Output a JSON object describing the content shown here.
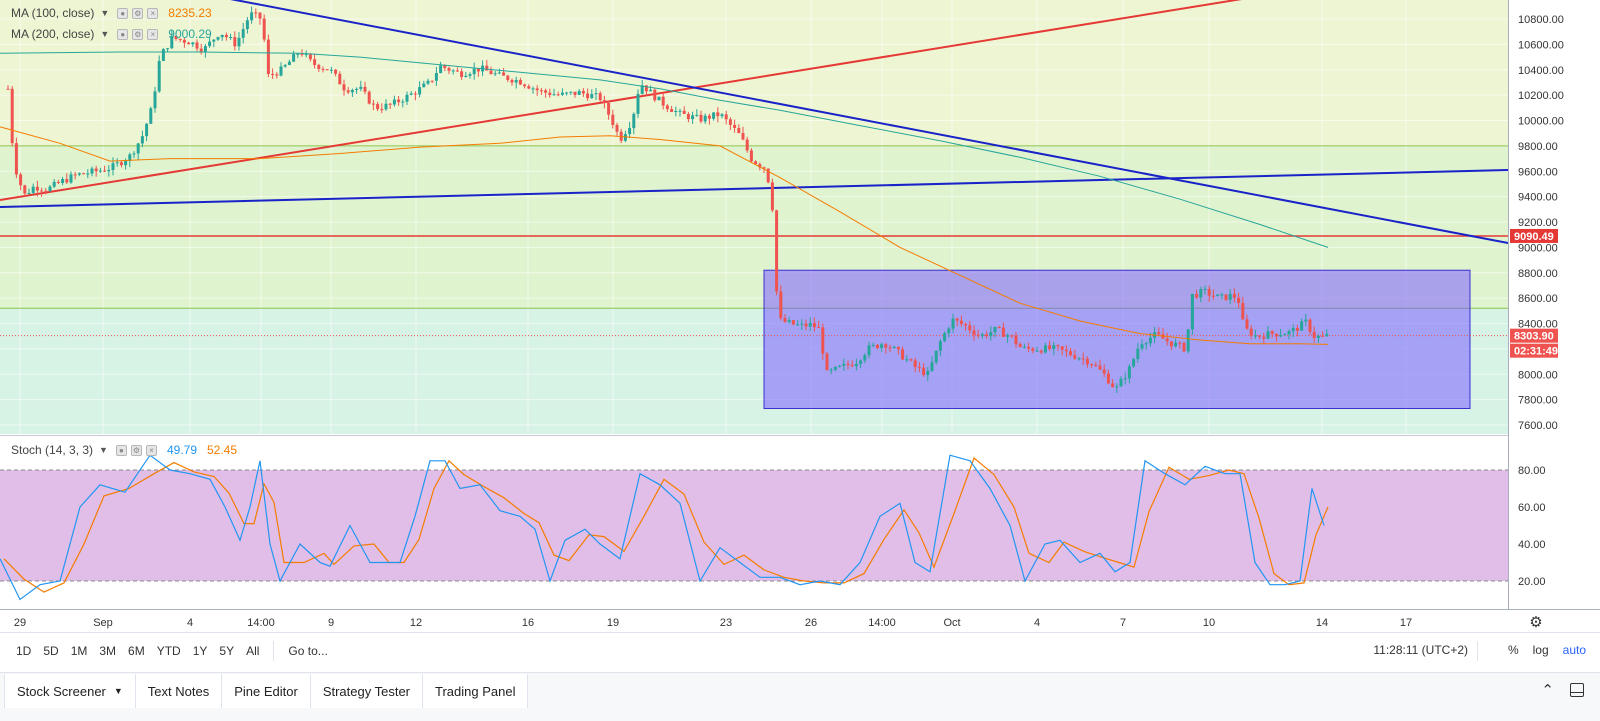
{
  "legends": {
    "ma100": {
      "name": "MA (100, close)",
      "value": "8235.23",
      "color": "#f57c00"
    },
    "ma200": {
      "name": "MA (200, close)",
      "value": "9000.29",
      "color": "#26a69a"
    },
    "stoch": {
      "name": "Stoch (14, 3, 3)",
      "k_value": "49.79",
      "d_value": "52.45",
      "k_color": "#2196f3",
      "d_color": "#f57c00"
    }
  },
  "price_axis": {
    "ticks": [
      "10800.00",
      "10600.00",
      "10400.00",
      "10200.00",
      "10000.00",
      "9800.00",
      "9600.00",
      "9400.00",
      "9200.00",
      "9000.00",
      "8800.00",
      "8600.00",
      "8400.00",
      "8200.00",
      "8000.00",
      "7800.00",
      "7600.00"
    ],
    "labels": {
      "resistance": "9090.49",
      "last_price": "8303.90",
      "countdown": "02:31:49"
    }
  },
  "stoch_axis": {
    "ticks": [
      "80.00",
      "60.00",
      "40.00",
      "20.00"
    ]
  },
  "time_axis": {
    "ticks": [
      "29",
      "Sep",
      "4",
      "14:00",
      "9",
      "12",
      "16",
      "19",
      "23",
      "26",
      "14:00",
      "Oct",
      "4",
      "7",
      "10",
      "14",
      "17"
    ]
  },
  "toolbar": {
    "ranges": [
      "1D",
      "5D",
      "1M",
      "3M",
      "6M",
      "YTD",
      "1Y",
      "5Y",
      "All"
    ],
    "goto": "Go to...",
    "clock": "11:28:11 (UTC+2)",
    "percent": "%",
    "log": "log",
    "auto": "auto"
  },
  "bottom_tabs": [
    "Stock Screener",
    "Text Notes",
    "Pine Editor",
    "Strategy Tester",
    "Trading Panel"
  ],
  "colors": {
    "up": "#26a69a",
    "down": "#ef5350",
    "blue_line": "#1a23c8",
    "red_line": "#e53935",
    "range_box": "#7b61ff",
    "stoch_band": "#e1bee7"
  }
}
